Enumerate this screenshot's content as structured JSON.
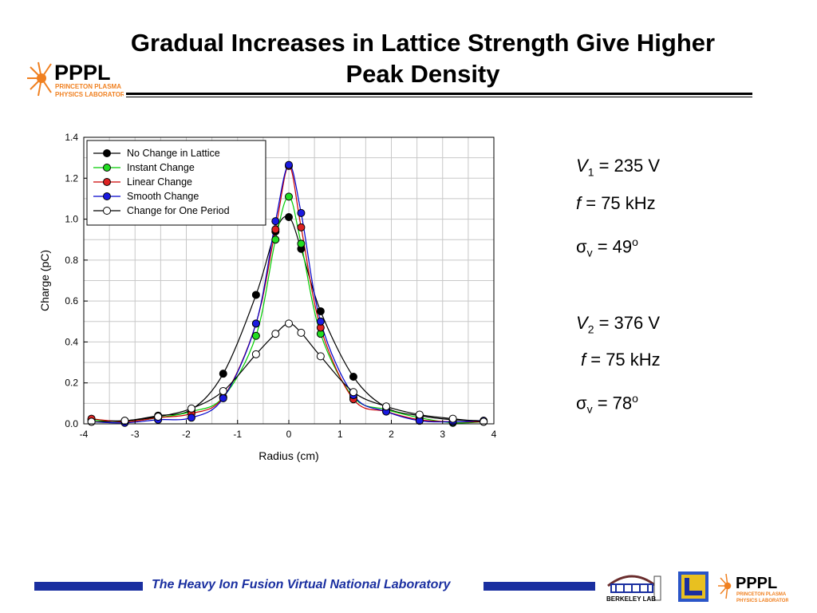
{
  "slide": {
    "title_line1": "Gradual Increases in Lattice Strength Give Higher",
    "title_line2": "Peak Density",
    "footer": "The Heavy Ion Fusion Virtual National Laboratory"
  },
  "logos": {
    "pppl_main": "PPPL",
    "pppl_sub1": "PRINCETON PLASMA",
    "pppl_sub2": "PHYSICS LABORATORY",
    "berkeley": "BERKELEY LAB"
  },
  "params": {
    "v1_label": "V",
    "v1_sub": "1",
    "v1_value": " = 235 V",
    "f1": " = 75 kHz",
    "f_label": "f",
    "sigma_symbol": "σ",
    "sigma_sub": "v",
    "sigma1_value": " = 49",
    "v2_label": "V",
    "v2_sub": "2",
    "v2_value": " = 376 V",
    "f2": " = 75 kHz",
    "sigma2_value": " = 78",
    "degree": "o"
  },
  "colors": {
    "brand_blue": "#1a2fa0",
    "logo_orange": "#f08020",
    "grid": "#c8c8c8"
  },
  "chart_data": {
    "type": "line",
    "xlabel": "Radius (cm)",
    "ylabel": "Charge (pC)",
    "xlim": [
      -4,
      4
    ],
    "ylim": [
      0,
      1.4
    ],
    "xticks": [
      -4,
      -3,
      -2,
      -1,
      0,
      1,
      2,
      3,
      4
    ],
    "yticks": [
      0.0,
      0.2,
      0.4,
      0.6,
      0.8,
      1.0,
      1.2,
      1.4
    ],
    "ytick_labels": [
      "0.0",
      "0.2",
      "0.4",
      "0.6",
      "0.8",
      "1.0",
      "1.2",
      "1.4"
    ],
    "grid": true,
    "legend_position": "top-left",
    "series": [
      {
        "name": "No Change in Lattice",
        "color": "#000000",
        "marker_fill": "#000000",
        "x": [
          -3.85,
          -3.2,
          -2.55,
          -1.9,
          -1.28,
          -0.64,
          -0.26,
          0,
          0.24,
          0.62,
          1.26,
          1.9,
          2.55,
          3.2,
          3.8
        ],
        "y": [
          0.02,
          0.015,
          0.04,
          0.07,
          0.245,
          0.63,
          0.94,
          1.01,
          0.855,
          0.55,
          0.23,
          0.08,
          0.04,
          0.02,
          0.015
        ]
      },
      {
        "name": "Instant Change",
        "color": "#00cc00",
        "marker_fill": "#22dd22",
        "x": [
          -3.85,
          -3.2,
          -2.55,
          -1.9,
          -1.28,
          -0.64,
          -0.26,
          0,
          0.24,
          0.62,
          1.26,
          1.9,
          2.55,
          3.2,
          3.8
        ],
        "y": [
          0.02,
          0.01,
          0.03,
          0.06,
          0.13,
          0.43,
          0.9,
          1.11,
          0.88,
          0.44,
          0.13,
          0.07,
          0.03,
          0.005,
          0.01
        ]
      },
      {
        "name": "Linear Change",
        "color": "#cc0000",
        "marker_fill": "#dd2222",
        "x": [
          -3.85,
          -3.2,
          -2.55,
          -1.9,
          -1.28,
          -0.64,
          -0.26,
          0,
          0.24,
          0.62,
          1.26,
          1.9,
          2.55,
          3.2,
          3.8
        ],
        "y": [
          0.025,
          0.01,
          0.03,
          0.05,
          0.13,
          0.49,
          0.95,
          1.26,
          0.96,
          0.47,
          0.12,
          0.06,
          0.02,
          0.01,
          0.01
        ]
      },
      {
        "name": "Smooth Change",
        "color": "#0000cc",
        "marker_fill": "#1a1ae0",
        "x": [
          -3.85,
          -3.2,
          -2.55,
          -1.9,
          -1.28,
          -0.64,
          -0.26,
          0,
          0.24,
          0.62,
          1.26,
          1.9,
          2.55,
          3.2,
          3.8
        ],
        "y": [
          0.01,
          0.005,
          0.02,
          0.03,
          0.125,
          0.49,
          0.99,
          1.265,
          1.03,
          0.5,
          0.14,
          0.06,
          0.015,
          0.01,
          0.015
        ]
      },
      {
        "name": "Change for One Period",
        "color": "#000000",
        "marker_fill": "#ffffff",
        "x": [
          -3.85,
          -3.2,
          -2.55,
          -1.9,
          -1.28,
          -0.64,
          -0.26,
          0,
          0.24,
          0.62,
          1.26,
          1.9,
          2.55,
          3.2,
          3.8
        ],
        "y": [
          0.01,
          0.015,
          0.035,
          0.075,
          0.16,
          0.34,
          0.44,
          0.49,
          0.445,
          0.33,
          0.155,
          0.085,
          0.045,
          0.025,
          0.01
        ]
      }
    ]
  }
}
